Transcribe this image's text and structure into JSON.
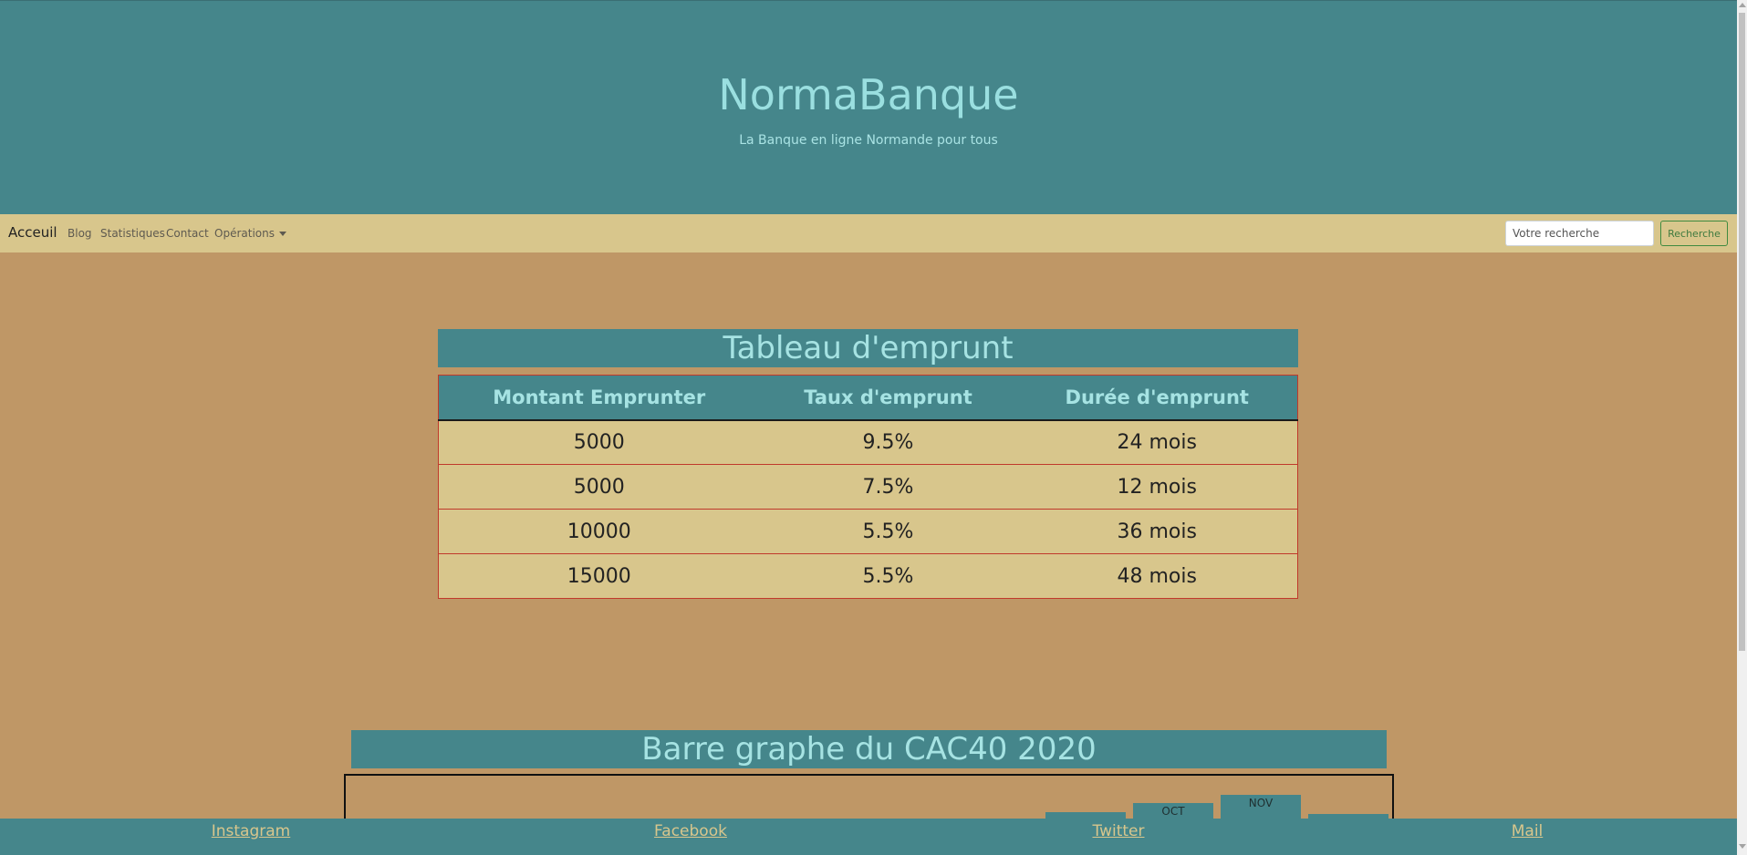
{
  "header": {
    "title": "NormaBanque",
    "subtitle": "La Banque en ligne Normande pour tous"
  },
  "navbar": {
    "brand": "Acceuil",
    "links": [
      "Blog",
      "Statistiques",
      "Contact",
      "Opérations"
    ],
    "search_placeholder": "Votre recherche",
    "search_button": "Recherche"
  },
  "loan_table": {
    "title": "Tableau d'emprunt",
    "headers": [
      "Montant Emprunter",
      "Taux d'emprunt",
      "Durée d'emprunt"
    ],
    "rows": [
      [
        "5000",
        "9.5%",
        "24 mois"
      ],
      [
        "5000",
        "7.5%",
        "12 mois"
      ],
      [
        "10000",
        "5.5%",
        "36 mois"
      ],
      [
        "15000",
        "5.5%",
        "48 mois"
      ]
    ]
  },
  "chart_section": {
    "title": "Barre graphe du CAC40 2020"
  },
  "chart_data": {
    "type": "bar",
    "title": "Barre graphe du CAC40 2020",
    "categories": [
      "",
      "OCT",
      "NOV",
      ""
    ],
    "values": [
      5,
      14,
      22,
      3
    ],
    "note_visible_labels": [
      "OCT",
      "NOV"
    ]
  },
  "footer": {
    "links": [
      "Instagram",
      "Facebook",
      "Twitter",
      "Mail"
    ]
  },
  "colors": {
    "teal": "#45868b",
    "sand": "#d8c68c",
    "background": "#bf9766",
    "table_border": "#c0392b"
  }
}
